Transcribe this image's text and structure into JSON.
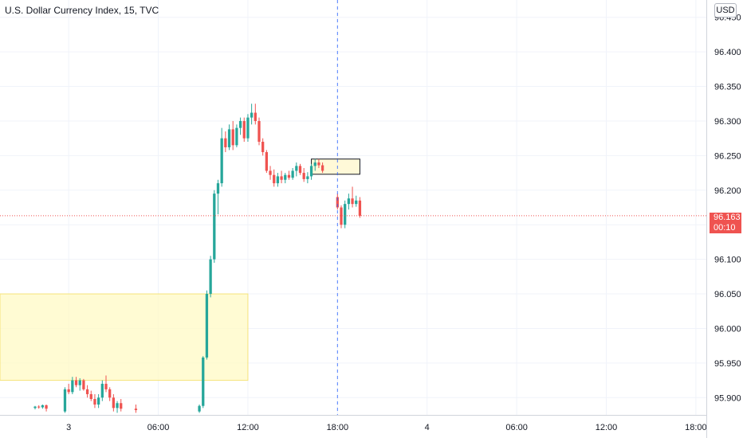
{
  "header": {
    "title": "U.S. Dollar Currency Index, 15, TVC",
    "currency_button": "USD"
  },
  "last_price": {
    "value": "96.163",
    "countdown": "00:10"
  },
  "colors": {
    "up": "#26a69a",
    "down": "#ef5350",
    "grid": "#f0f3fa",
    "zone_fill": "#fff9c4",
    "zone_border": "#f5e37a",
    "cursor_line": "#2962ff"
  },
  "chart_data": {
    "type": "candlestick",
    "title": "U.S. Dollar Currency Index, 15, TVC",
    "ylim": [
      95.875,
      96.475
    ],
    "y_ticks": [
      "96.450",
      "96.400",
      "96.350",
      "96.300",
      "96.250",
      "96.200",
      "96.150",
      "96.100",
      "96.050",
      "96.000",
      "95.950",
      "95.900"
    ],
    "x_ticks": [
      {
        "label": "3",
        "t": 0
      },
      {
        "label": "06:00",
        "t": 6
      },
      {
        "label": "12:00",
        "t": 12
      },
      {
        "label": "18:00",
        "t": 18
      },
      {
        "label": "4",
        "t": 24
      },
      {
        "label": "06:00",
        "t": 30
      },
      {
        "label": "12:00",
        "t": 36
      },
      {
        "label": "18:00",
        "t": 42
      }
    ],
    "xlim": [
      -4.6,
      42.7
    ],
    "cursor_time": 18,
    "candles": [
      [
        -2.25,
        95.885,
        95.888,
        95.883,
        95.887
      ],
      [
        -2.0,
        95.887,
        95.889,
        95.884,
        95.886
      ],
      [
        -1.75,
        95.886,
        95.89,
        95.884,
        95.889
      ],
      [
        -1.5,
        95.889,
        95.89,
        95.88,
        95.884
      ],
      [
        -0.25,
        95.88,
        95.915,
        95.878,
        95.912
      ],
      [
        0.0,
        95.912,
        95.92,
        95.905,
        95.908
      ],
      [
        0.25,
        95.908,
        95.93,
        95.905,
        95.925
      ],
      [
        0.5,
        95.925,
        95.93,
        95.915,
        95.918
      ],
      [
        0.75,
        95.918,
        95.928,
        95.91,
        95.925
      ],
      [
        1.0,
        95.925,
        95.927,
        95.91,
        95.912
      ],
      [
        1.25,
        95.912,
        95.918,
        95.9,
        95.905
      ],
      [
        1.5,
        95.905,
        95.91,
        95.895,
        95.898
      ],
      [
        1.75,
        95.898,
        95.905,
        95.885,
        95.89
      ],
      [
        2.0,
        95.89,
        95.905,
        95.885,
        95.9
      ],
      [
        2.25,
        95.9,
        95.925,
        95.895,
        95.92
      ],
      [
        2.5,
        95.92,
        95.932,
        95.908,
        95.912
      ],
      [
        2.75,
        95.912,
        95.915,
        95.895,
        95.9
      ],
      [
        3.0,
        95.9,
        95.905,
        95.88,
        95.885
      ],
      [
        3.25,
        95.885,
        95.895,
        95.878,
        95.892
      ],
      [
        3.5,
        95.892,
        95.898,
        95.88,
        95.884
      ],
      [
        4.5,
        95.884,
        95.89,
        95.878,
        95.882
      ],
      [
        8.75,
        95.88,
        95.89,
        95.878,
        95.888
      ],
      [
        9.0,
        95.888,
        95.96,
        95.885,
        95.958
      ],
      [
        9.25,
        95.958,
        96.055,
        95.955,
        96.05
      ],
      [
        9.5,
        96.05,
        96.105,
        96.045,
        96.1
      ],
      [
        9.75,
        96.1,
        96.2,
        96.095,
        96.195
      ],
      [
        10.0,
        96.195,
        96.215,
        96.165,
        96.21
      ],
      [
        10.25,
        96.21,
        96.29,
        96.205,
        96.275
      ],
      [
        10.5,
        96.275,
        96.285,
        96.255,
        96.262
      ],
      [
        10.75,
        96.262,
        96.295,
        96.258,
        96.288
      ],
      [
        11.0,
        96.288,
        96.3,
        96.258,
        96.265
      ],
      [
        11.25,
        96.265,
        96.295,
        96.262,
        96.29
      ],
      [
        11.5,
        96.29,
        96.305,
        96.28,
        96.3
      ],
      [
        11.75,
        96.3,
        96.305,
        96.27,
        96.275
      ],
      [
        12.0,
        96.275,
        96.31,
        96.27,
        96.305
      ],
      [
        12.25,
        96.305,
        96.325,
        96.295,
        96.312
      ],
      [
        12.5,
        96.312,
        96.325,
        96.295,
        96.3
      ],
      [
        12.75,
        96.3,
        96.305,
        96.265,
        96.27
      ],
      [
        13.0,
        96.27,
        96.275,
        96.25,
        96.255
      ],
      [
        13.25,
        96.255,
        96.258,
        96.225,
        96.228
      ],
      [
        13.5,
        96.228,
        96.235,
        96.215,
        96.222
      ],
      [
        13.75,
        96.222,
        96.23,
        96.205,
        96.21
      ],
      [
        14.0,
        96.21,
        96.225,
        96.205,
        96.22
      ],
      [
        14.25,
        96.22,
        96.228,
        96.21,
        96.215
      ],
      [
        14.5,
        96.215,
        96.225,
        96.21,
        96.222
      ],
      [
        14.75,
        96.222,
        96.228,
        96.215,
        96.218
      ],
      [
        15.0,
        96.218,
        96.232,
        96.215,
        96.228
      ],
      [
        15.25,
        96.228,
        96.24,
        96.22,
        96.235
      ],
      [
        15.5,
        96.235,
        96.238,
        96.222,
        96.225
      ],
      [
        15.75,
        96.225,
        96.232,
        96.212,
        96.216
      ],
      [
        16.0,
        96.216,
        96.226,
        96.21,
        96.22
      ],
      [
        16.25,
        96.22,
        96.238,
        96.215,
        96.235
      ],
      [
        16.5,
        96.235,
        96.245,
        96.228,
        96.24
      ],
      [
        16.75,
        96.24,
        96.245,
        96.232,
        96.236
      ],
      [
        17.0,
        96.236,
        96.24,
        96.225,
        96.228
      ],
      [
        18.0,
        96.19,
        96.195,
        96.172,
        96.175
      ],
      [
        18.25,
        96.175,
        96.178,
        96.145,
        96.15
      ],
      [
        18.5,
        96.15,
        96.185,
        96.145,
        96.18
      ],
      [
        18.75,
        96.18,
        96.195,
        96.172,
        96.188
      ],
      [
        19.0,
        96.188,
        96.205,
        96.175,
        96.18
      ],
      [
        19.25,
        96.18,
        96.192,
        96.176,
        96.185
      ],
      [
        19.5,
        96.185,
        96.19,
        96.16,
        96.163
      ]
    ],
    "zones": [
      {
        "t_from": -4.6,
        "t_to": 12.0,
        "price_high": 96.05,
        "price_low": 95.925,
        "style": "filled"
      },
      {
        "t_from": 16.25,
        "t_to": 19.5,
        "price_high": 96.245,
        "price_low": 96.223,
        "style": "outlined"
      }
    ],
    "last_price": 96.163
  }
}
